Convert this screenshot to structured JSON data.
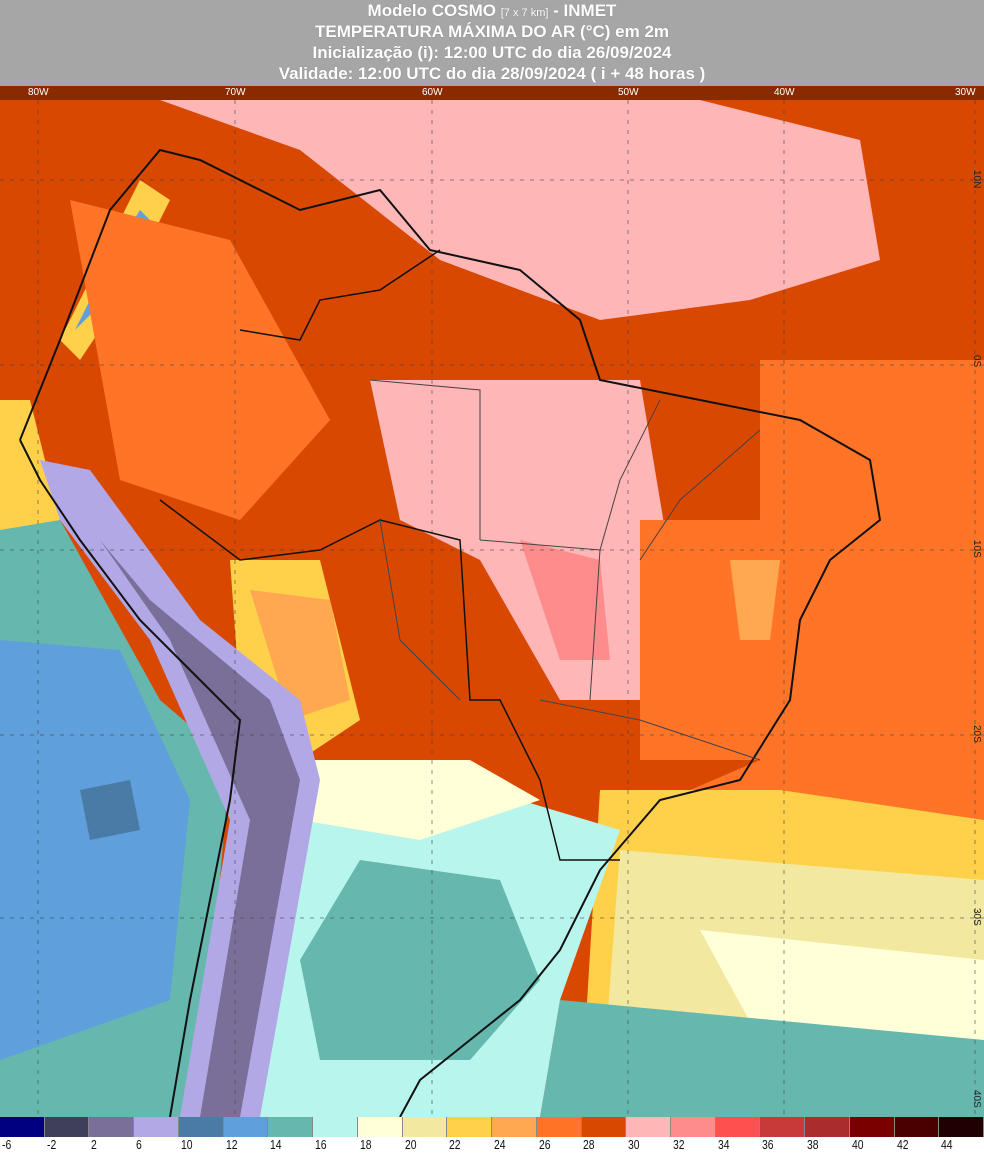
{
  "header": {
    "line1_main": "Modelo COSMO",
    "line1_res": "[7 x 7 km]",
    "line1_org": "- INMET",
    "line2": "TEMPERATURA MÁXIMA DO AR (°C) em 2m",
    "line3": "Inicialização (i): 12:00 UTC do dia 26/09/2024",
    "line4": "Validade: 12:00 UTC do dia 28/09/2024 ( i + 48 horas )"
  },
  "axes": {
    "longitudes": [
      "80W",
      "70W",
      "60W",
      "50W",
      "40W",
      "30W"
    ],
    "latitudes": [
      "10N",
      "0S",
      "10S",
      "20S",
      "30S",
      "40S"
    ]
  },
  "legend": {
    "unit": "°C",
    "labels": [
      "-6",
      "-2",
      "2",
      "6",
      "10",
      "12",
      "14",
      "16",
      "18",
      "20",
      "22",
      "24",
      "26",
      "28",
      "30",
      "32",
      "34",
      "36",
      "38",
      "40",
      "42",
      "44"
    ],
    "colors": [
      "#000080",
      "#3f3f5a",
      "#7a6f98",
      "#b2a8e6",
      "#4a7aa6",
      "#5fa0dc",
      "#66b8ae",
      "#b8f5ec",
      "#ffffd8",
      "#f2e8a0",
      "#ffd04a",
      "#ffa850",
      "#ff7426",
      "#d84800",
      "#ffb6b6",
      "#ff8c8c",
      "#ff5050",
      "#c83a3a",
      "#aa2c2c",
      "#7a0000",
      "#4a0000",
      "#200000"
    ]
  }
}
